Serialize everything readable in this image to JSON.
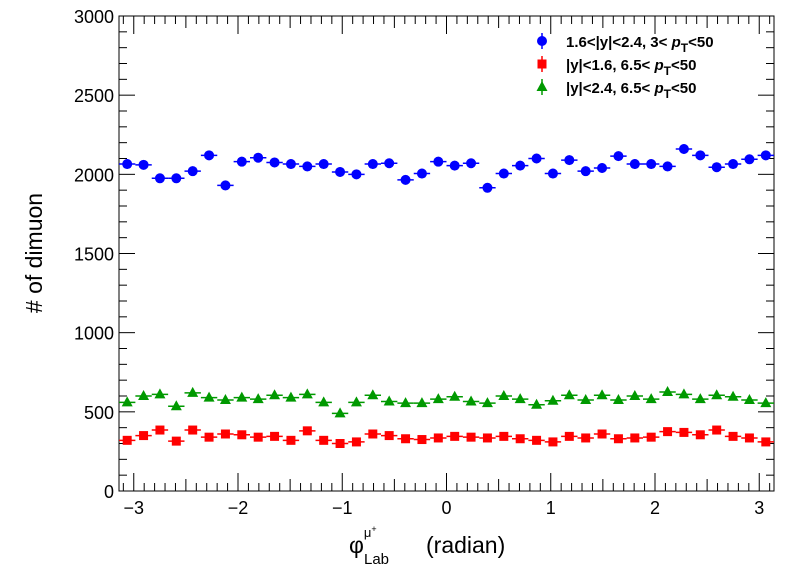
{
  "chart_data": {
    "type": "scatter",
    "xlabel_base": "φ",
    "xlabel_sup": "μ",
    "xlabel_supsup": "+",
    "xlabel_sub": "Lab",
    "xlabel_rest": "(radian)",
    "ylabel": "# of dimuon",
    "xlim": [
      -3.14159,
      3.14159
    ],
    "ylim": [
      0,
      3000
    ],
    "x_ticks": [
      -3,
      -2,
      -1,
      0,
      1,
      2,
      3
    ],
    "x_tick_labels": [
      "−3",
      "−2",
      "−1",
      "0",
      "1",
      "2",
      "3"
    ],
    "y_ticks": [
      0,
      500,
      1000,
      1500,
      2000,
      2500,
      3000
    ],
    "y_tick_labels": [
      "0",
      "500",
      "1000",
      "1500",
      "2000",
      "2500",
      "3000"
    ],
    "grid": false,
    "legend_position": "top-right",
    "bins": 40,
    "series": [
      {
        "legend_parts": [
          "1.6<|y|<2.4, 3< ",
          "p",
          "T",
          "<50"
        ],
        "color": "#0000ff",
        "marker": "circle",
        "y_err": 30,
        "values": [
          2065,
          2060,
          1975,
          1975,
          2020,
          2120,
          1930,
          2080,
          2105,
          2075,
          2065,
          2050,
          2065,
          2015,
          2000,
          2065,
          2070,
          1965,
          2005,
          2080,
          2055,
          2070,
          1915,
          2005,
          2055,
          2100,
          2005,
          2090,
          2020,
          2040,
          2115,
          2065,
          2065,
          2050,
          2160,
          2120,
          2045,
          2065,
          2095,
          2120
        ]
      },
      {
        "legend_parts": [
          "|y|<1.6, 6.5< ",
          "p",
          "T",
          "<50"
        ],
        "color": "#ff0000",
        "marker": "square",
        "y_err": 18,
        "values": [
          320,
          350,
          385,
          315,
          385,
          340,
          360,
          355,
          340,
          345,
          320,
          380,
          320,
          300,
          310,
          360,
          350,
          330,
          325,
          335,
          345,
          340,
          335,
          345,
          330,
          320,
          310,
          345,
          335,
          360,
          330,
          335,
          340,
          375,
          370,
          355,
          385,
          345,
          335,
          310
        ]
      },
      {
        "legend_parts": [
          "|y|<2.4, 6.5< ",
          "p",
          "T",
          "<50"
        ],
        "color": "#009900",
        "marker": "triangle",
        "y_err": 18,
        "values": [
          560,
          600,
          610,
          535,
          620,
          590,
          575,
          590,
          580,
          605,
          590,
          610,
          560,
          490,
          560,
          605,
          565,
          555,
          555,
          580,
          595,
          565,
          555,
          600,
          580,
          545,
          570,
          605,
          575,
          605,
          575,
          600,
          580,
          625,
          610,
          580,
          605,
          595,
          575,
          555
        ]
      }
    ]
  }
}
